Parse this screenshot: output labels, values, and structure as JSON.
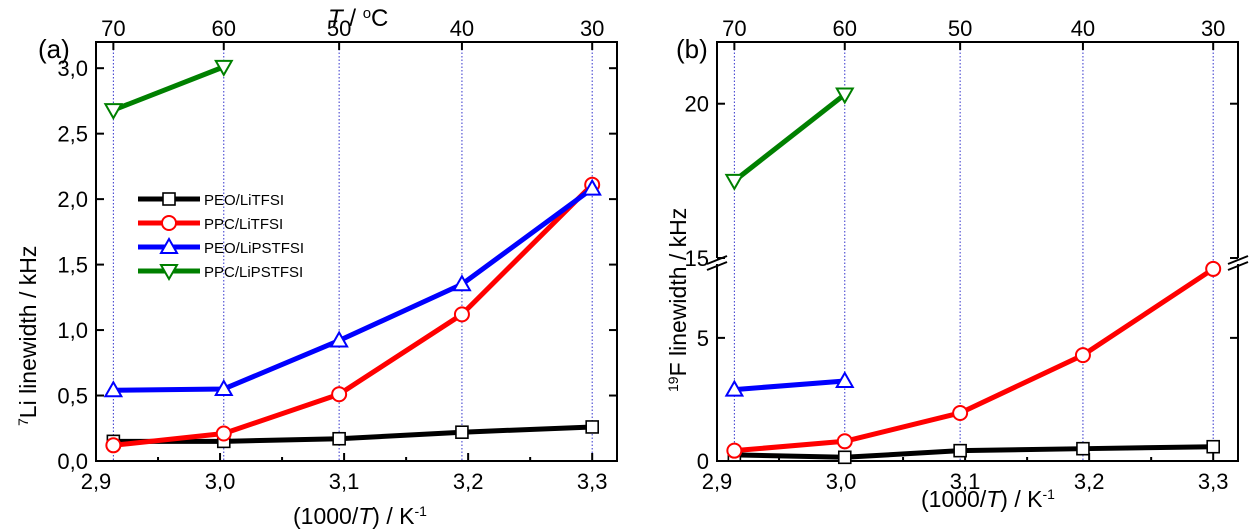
{
  "colors": {
    "PEO/LiTFSI": "#000000",
    "PPC/LiTFSI": "#ff0000",
    "PEO/LiPSTFSI": "#0000ff",
    "PPC/LiPSTFSI": "#008000",
    "guide": "#3333cc"
  },
  "chart_data": [
    {
      "type": "line",
      "panel_label": "(a)",
      "title_top": "T / °C",
      "xlabel": "(1000/T) / K-1",
      "ylabel": "7Li linewidth / kHz",
      "xlim": [
        2.9,
        3.32
      ],
      "ylim": [
        0,
        3.2
      ],
      "x_ticks": [
        2.9,
        3.0,
        3.1,
        3.2,
        3.3
      ],
      "x_tick_labels": [
        "2,9",
        "3,0",
        "3,1",
        "3,2",
        "3,3"
      ],
      "y_ticks": [
        0,
        0.5,
        1.0,
        1.5,
        2.0,
        2.5,
        3.0
      ],
      "y_tick_labels": [
        "0,0",
        "0,5",
        "1,0",
        "1,5",
        "2,0",
        "2,5",
        "3,0"
      ],
      "top_ticks_x": [
        2.914,
        3.003,
        3.096,
        3.195,
        3.3
      ],
      "top_tick_labels": [
        "70",
        "60",
        "50",
        "40",
        "30"
      ],
      "legend": [
        "PEO/LiTFSI",
        "PPC/LiTFSI",
        "PEO/LiPSTFSI",
        "PPC/LiPSTFSI"
      ],
      "series": [
        {
          "name": "PEO/LiTFSI",
          "marker": "square",
          "x": [
            2.914,
            3.003,
            3.096,
            3.195,
            3.3
          ],
          "y": [
            0.15,
            0.15,
            0.17,
            0.22,
            0.26
          ]
        },
        {
          "name": "PPC/LiTFSI",
          "marker": "circle",
          "x": [
            2.914,
            3.003,
            3.096,
            3.195,
            3.3
          ],
          "y": [
            0.12,
            0.21,
            0.51,
            1.12,
            2.11
          ]
        },
        {
          "name": "PEO/LiPSTFSI",
          "marker": "triangle-up",
          "x": [
            2.914,
            3.003,
            3.096,
            3.195,
            3.3
          ],
          "y": [
            0.54,
            0.55,
            0.92,
            1.35,
            2.08
          ]
        },
        {
          "name": "PPC/LiPSTFSI",
          "marker": "triangle-down",
          "x": [
            2.914,
            3.003
          ],
          "y": [
            2.68,
            3.01
          ]
        }
      ]
    },
    {
      "type": "line",
      "panel_label": "(b)",
      "xlabel": "(1000/T) / K-1",
      "ylabel": "19F linewidth / kHz",
      "xlim": [
        2.9,
        3.32
      ],
      "ylim_lower": [
        0,
        8
      ],
      "ylim_upper": [
        15,
        22
      ],
      "axis_break": true,
      "x_ticks": [
        2.9,
        3.0,
        3.1,
        3.2,
        3.3
      ],
      "x_tick_labels": [
        "2,9",
        "3,0",
        "3,1",
        "3,2",
        "3,3"
      ],
      "y_ticks": [
        0,
        5,
        15,
        20
      ],
      "y_tick_labels": [
        "0",
        "5",
        "15",
        "20"
      ],
      "top_ticks_x": [
        2.914,
        3.003,
        3.096,
        3.195,
        3.3
      ],
      "top_tick_labels": [
        "70",
        "60",
        "50",
        "40",
        "30"
      ],
      "series": [
        {
          "name": "PEO/LiTFSI",
          "marker": "square",
          "x": [
            2.914,
            3.003,
            3.096,
            3.195,
            3.3
          ],
          "y": [
            0.25,
            0.15,
            0.42,
            0.5,
            0.58
          ]
        },
        {
          "name": "PPC/LiTFSI",
          "marker": "circle",
          "x": [
            2.914,
            3.003,
            3.096,
            3.195,
            3.3
          ],
          "y": [
            0.42,
            0.8,
            1.95,
            4.3,
            7.8
          ]
        },
        {
          "name": "PEO/LiPSTFSI",
          "marker": "triangle-up",
          "x": [
            2.914,
            3.003
          ],
          "y": [
            2.9,
            3.25
          ]
        },
        {
          "name": "PPC/LiPSTFSI",
          "marker": "triangle-down",
          "x": [
            2.914,
            3.003
          ],
          "y": [
            17.5,
            20.3
          ]
        }
      ]
    }
  ]
}
